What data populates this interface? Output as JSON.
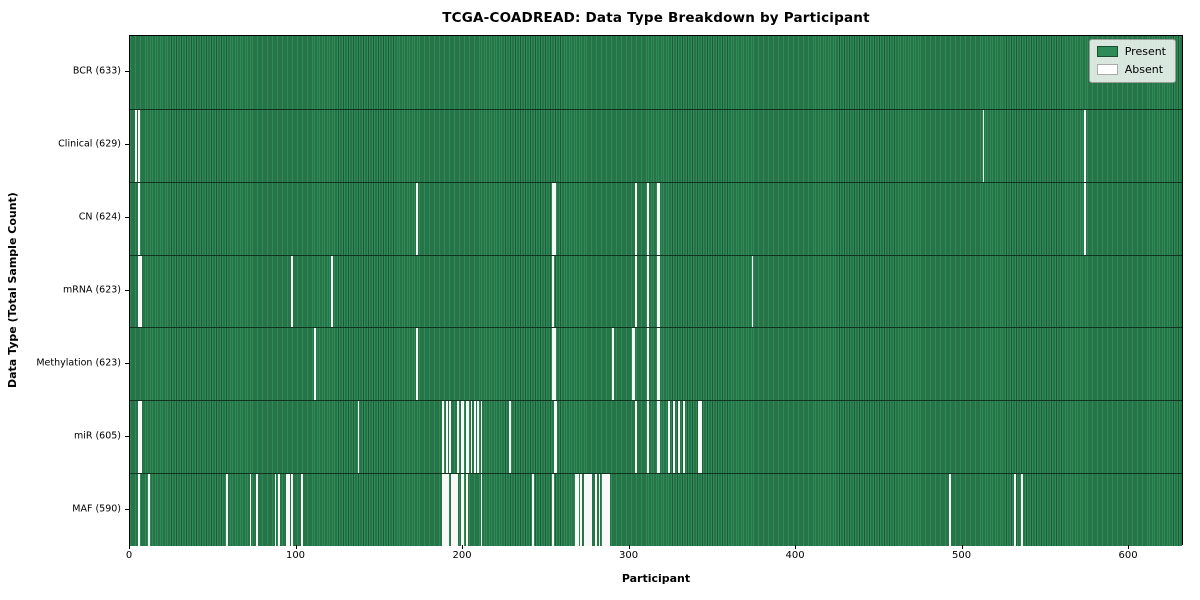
{
  "chart_data": {
    "type": "heatmap",
    "title": "TCGA-COADREAD: Data Type Breakdown by Participant",
    "xlabel": "Participant",
    "ylabel": "Data Type (Total Sample Count)",
    "x_ticks": [
      0,
      100,
      200,
      300,
      400,
      500,
      600
    ],
    "x_range": [
      0,
      633
    ],
    "n_participants": 633,
    "present_color": "#2e8b57",
    "absent_color": "#ffffff",
    "legend": [
      {
        "label": "Present",
        "color": "#2e8b57",
        "edge": "#1b4d30"
      },
      {
        "label": "Absent",
        "color": "#ffffff",
        "edge": "#aaaaaa"
      }
    ],
    "rows": [
      {
        "key": "bcr",
        "label": "BCR (633)",
        "total": 633,
        "absent": []
      },
      {
        "key": "clinical",
        "label": "Clinical (629)",
        "total": 629,
        "absent": [
          3,
          5,
          513,
          574
        ]
      },
      {
        "key": "cn",
        "label": "CN (624)",
        "total": 624,
        "absent": [
          5,
          172,
          254,
          255,
          304,
          311,
          317,
          318,
          574
        ]
      },
      {
        "key": "mrna",
        "label": "mRNA (623)",
        "total": 623,
        "absent": [
          5,
          6,
          97,
          121,
          254,
          304,
          311,
          317,
          318,
          374
        ]
      },
      {
        "key": "methylation",
        "label": "Methylation (623)",
        "total": 623,
        "absent": [
          111,
          172,
          254,
          255,
          290,
          302,
          303,
          311,
          317,
          318
        ]
      },
      {
        "key": "mir",
        "label": "miR (605)",
        "total": 605,
        "absent": [
          5,
          6,
          137,
          188,
          190,
          192,
          197,
          199,
          200,
          202,
          203,
          205,
          207,
          209,
          211,
          228,
          255,
          256,
          304,
          311,
          317,
          318,
          324,
          327,
          330,
          333,
          342,
          343
        ]
      },
      {
        "key": "maf",
        "label": "MAF (590)",
        "total": 590,
        "absent": [
          5,
          11,
          58,
          72,
          76,
          87,
          89,
          94,
          95,
          97,
          103,
          188,
          189,
          190,
          191,
          193,
          194,
          195,
          196,
          199,
          200,
          202,
          211,
          242,
          254,
          268,
          269,
          271,
          273,
          274,
          275,
          276,
          277,
          280,
          282,
          284,
          285,
          286,
          287,
          288,
          493,
          532,
          536
        ]
      }
    ]
  }
}
